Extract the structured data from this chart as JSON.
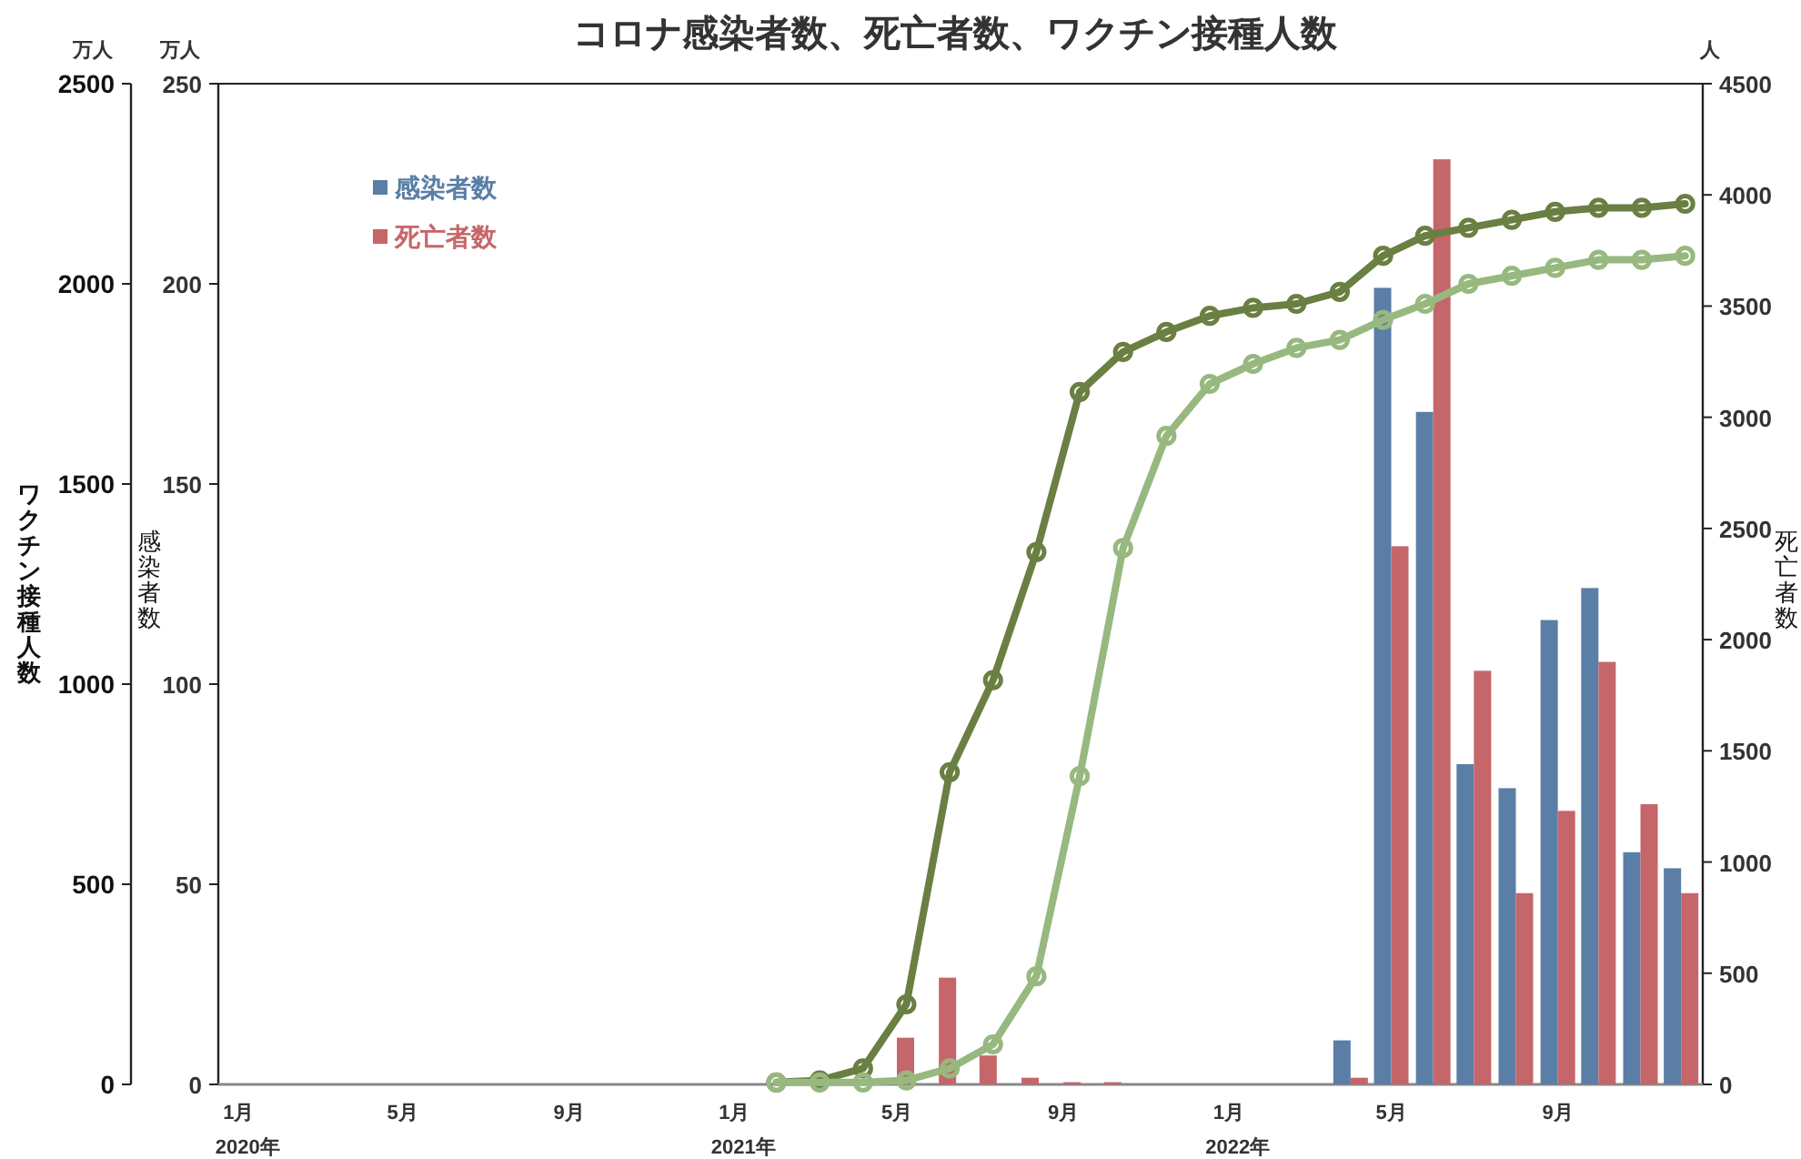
{
  "chart_data": {
    "type": "bar",
    "title": "コロナ感染者数、死亡者数、ワクチン接種人数",
    "ylabel": "ワクチン接種人数",
    "y2label": "感染者数",
    "y3label": "死亡者数",
    "annotations": [
      "万人",
      "万人",
      "人"
    ],
    "x": [
      "2020-01-16",
      "2020-02-15",
      "2020-03-16",
      "2020-04-16",
      "2020-05-16",
      "2020-06-16",
      "2020-07-16",
      "2020-08-16",
      "2020-09-16",
      "2020-10-16",
      "2020-11-16",
      "2020-12-16",
      "2021-01-16",
      "2021-02-15",
      "2021-03-16",
      "2021-04-16",
      "2021-05-16",
      "2021-06-16",
      "2021-07-16",
      "2021-08-16",
      "2021-09-16",
      "2021-10-16",
      "2021-11-16",
      "2021-12-16",
      "2022-01-16",
      "2022-02-15",
      "2022-03-16",
      "2022-04-16",
      "2022-05-16",
      "2022-06-16",
      "2022-07-16",
      "2022-08-16",
      "2022-09-16",
      "2022-10-16",
      "2022-11-16",
      "2022-12-16"
    ],
    "xlim": [
      "2020-01-01",
      "2023-01-01"
    ],
    "xticks": [
      {
        "value": "2020-01-16",
        "label": "1月\n2020年"
      },
      {
        "value": "2020-05-16",
        "label": "5月"
      },
      {
        "value": "2020-09-16",
        "label": "9月"
      },
      {
        "value": "2021-01-16",
        "label": "1月\n2021年"
      },
      {
        "value": "2021-05-16",
        "label": "5月"
      },
      {
        "value": "2021-09-16",
        "label": "9月"
      },
      {
        "value": "2022-01-16",
        "label": "1月\n2022年"
      },
      {
        "value": "2022-05-16",
        "label": "5月"
      },
      {
        "value": "2022-09-16",
        "label": "9月"
      }
    ],
    "ylim": [
      0,
      2500
    ],
    "yticks": [
      0,
      500,
      1000,
      1500,
      2000,
      2500
    ],
    "y2lim": [
      0,
      250
    ],
    "y2ticks": [
      0,
      50,
      100,
      150,
      200,
      250
    ],
    "y3lim": [
      0,
      4500
    ],
    "y3ticks": [
      0,
      500,
      1000,
      1500,
      2000,
      2500,
      3000,
      3500,
      4000,
      4500
    ],
    "legend": "top left",
    "marker": "circle",
    "line_style": "solid",
    "series": [
      {
        "name": "感染者数",
        "axis": "y2",
        "color": "#5a7ea6",
        "values": [
          0,
          0,
          0,
          0,
          0,
          0,
          0,
          0,
          0,
          0,
          0,
          0,
          0,
          0,
          0,
          0,
          0,
          null,
          0,
          0,
          0,
          0,
          0,
          0,
          0,
          0,
          null,
          11,
          199,
          168,
          80,
          74,
          116,
          124,
          58,
          54
        ]
      },
      {
        "name": "死亡者数",
        "axis": "y3",
        "color": "#c5666a",
        "values": [
          0,
          0,
          0,
          0,
          0,
          0,
          0,
          0,
          0,
          0,
          0,
          0,
          0,
          0,
          0,
          0,
          210,
          480,
          130,
          30,
          10,
          10,
          0,
          0,
          0,
          0,
          0,
          30,
          2420,
          4160,
          1860,
          860,
          1230,
          1900,
          1260,
          860
        ]
      },
      {
        "type": "line",
        "axis": "y",
        "color": "#6a7f42",
        "x": [
          "2021-02-16",
          "2021-03-20",
          "2021-04-21",
          "2021-05-23",
          "2021-06-24",
          "2021-07-26",
          "2021-08-27",
          "2021-09-28",
          "2021-10-30",
          "2021-12-01",
          "2022-01-02",
          "2022-02-03",
          "2022-03-07",
          "2022-04-08",
          "2022-05-10",
          "2022-06-10",
          "2022-07-12",
          "2022-08-13",
          "2022-09-14",
          "2022-10-16",
          "2022-11-17",
          "2022-12-19"
        ],
        "values": [
          5,
          10,
          40,
          200,
          780,
          1010,
          1330,
          1730,
          1830,
          1880,
          1920,
          1940,
          1950,
          1980,
          2070,
          2120,
          2140,
          2160,
          2180,
          2190,
          2190,
          2200
        ]
      },
      {
        "type": "line",
        "axis": "y",
        "color": "#97b87e",
        "x": [
          "2021-02-16",
          "2021-03-20",
          "2021-04-21",
          "2021-05-23",
          "2021-06-24",
          "2021-07-26",
          "2021-08-27",
          "2021-09-28",
          "2021-10-30",
          "2021-12-01",
          "2022-01-02",
          "2022-02-03",
          "2022-03-07",
          "2022-04-08",
          "2022-05-10",
          "2022-06-10",
          "2022-07-12",
          "2022-08-13",
          "2022-09-14",
          "2022-10-16",
          "2022-11-17",
          "2022-12-19"
        ],
        "values": [
          5,
          5,
          5,
          10,
          40,
          100,
          270,
          770,
          1340,
          1620,
          1750,
          1800,
          1840,
          1860,
          1910,
          1950,
          2000,
          2020,
          2040,
          2060,
          2060,
          2070
        ]
      }
    ]
  }
}
